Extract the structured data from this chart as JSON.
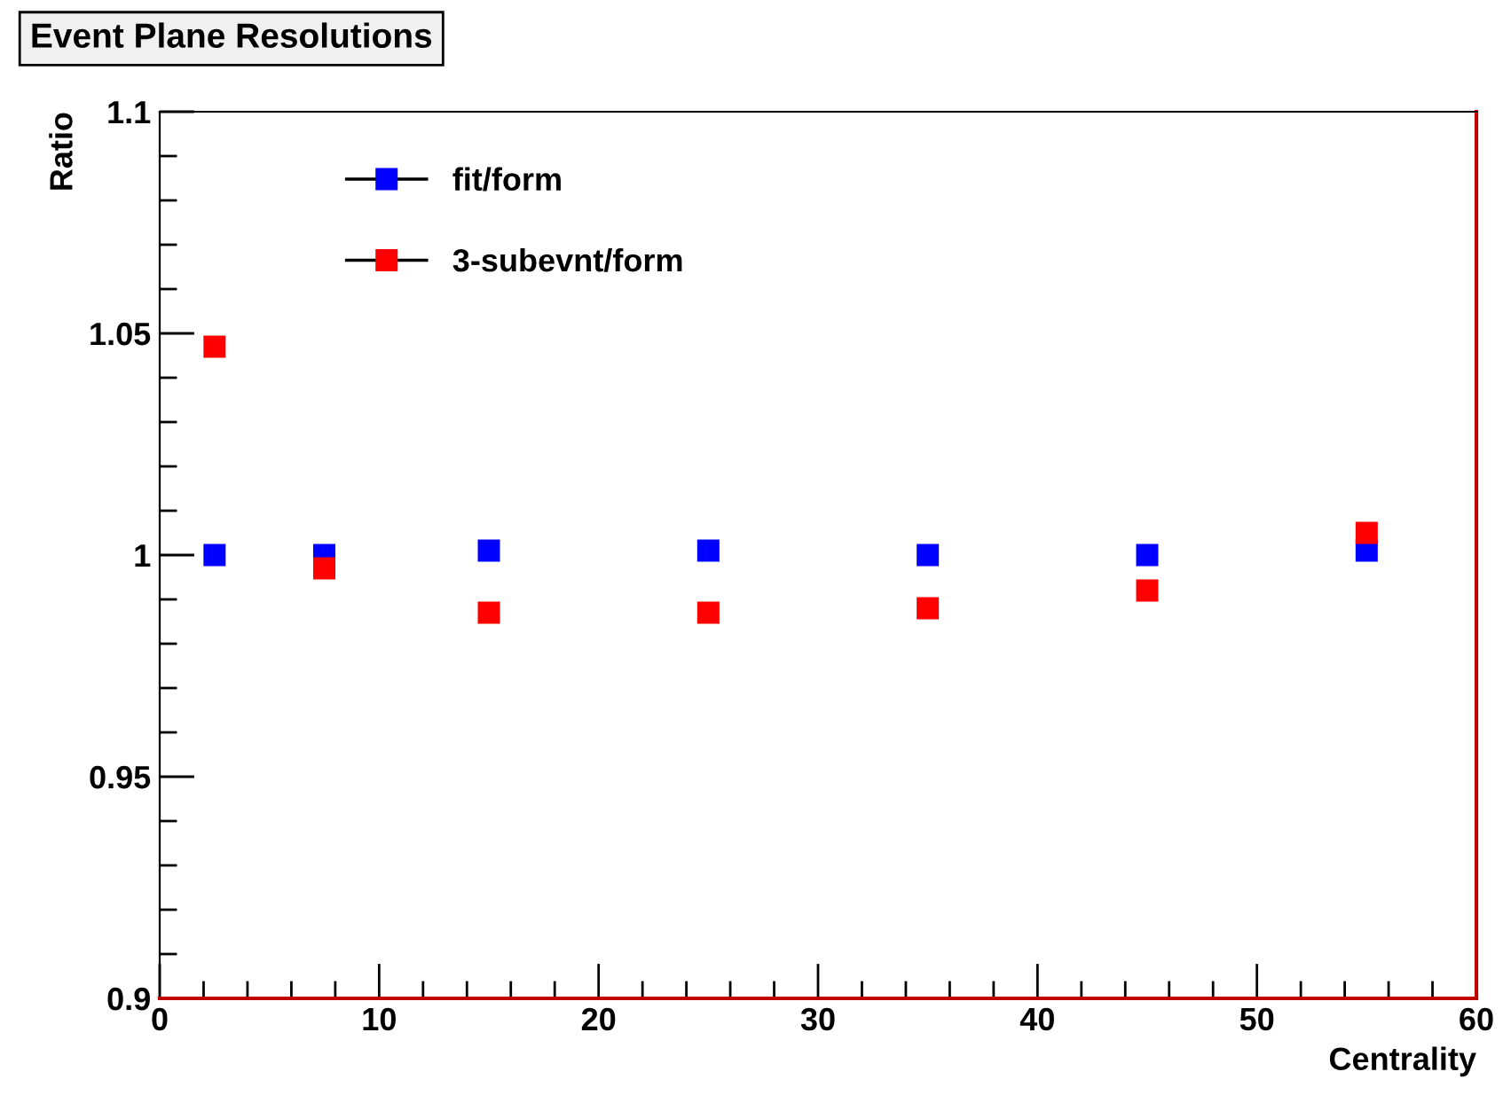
{
  "chart_data": {
    "type": "scatter",
    "title": "Event Plane Resolutions",
    "xlabel": "Centrality",
    "ylabel": "Ratio",
    "x": [
      2.5,
      7.5,
      15,
      25,
      35,
      45,
      55
    ],
    "series": [
      {
        "name": "fit/form",
        "color": "#0000ff",
        "values": [
          1.0,
          1.0,
          1.001,
          1.001,
          1.0,
          1.0,
          1.001
        ]
      },
      {
        "name": "3-subevnt/form",
        "color": "#ff0000",
        "values": [
          1.047,
          0.997,
          0.987,
          0.987,
          0.988,
          0.992,
          1.005
        ]
      }
    ],
    "xlim": [
      0,
      60
    ],
    "xticks": [
      0,
      10,
      20,
      30,
      40,
      50,
      60
    ],
    "ylim": [
      0.9,
      1.1
    ],
    "yticks": [
      0.9,
      0.95,
      1,
      1.05,
      1.1
    ],
    "marker": "square",
    "legend": "top left",
    "grid": false
  }
}
